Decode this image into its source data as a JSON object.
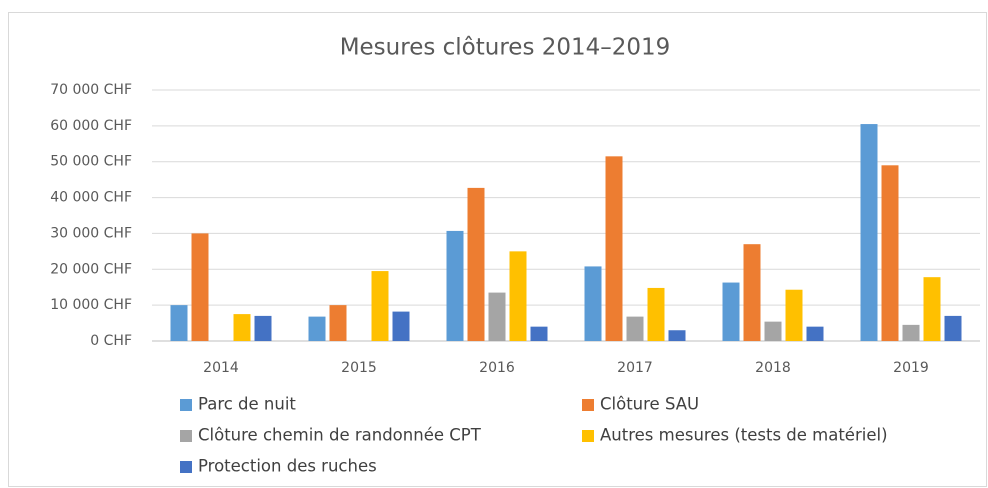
{
  "chart_data": {
    "type": "bar",
    "title": "Mesures clôtures 2014–2019",
    "categories": [
      "2014",
      "2015",
      "2016",
      "2017",
      "2018",
      "2019"
    ],
    "series": [
      {
        "name": "Parc de nuit",
        "color": "#5b9bd5",
        "values": [
          10000,
          6800,
          30700,
          20800,
          16300,
          60500
        ]
      },
      {
        "name": "Clôture SAU",
        "color": "#ed7d31",
        "values": [
          30000,
          10000,
          42700,
          51500,
          27000,
          49000
        ]
      },
      {
        "name": "Clôture chemin de randonnée CPT",
        "color": "#a5a5a5",
        "values": [
          0,
          0,
          13500,
          6800,
          5400,
          4500
        ]
      },
      {
        "name": "Autres mesures (tests de matériel)",
        "color": "#ffc000",
        "values": [
          7500,
          19500,
          25000,
          14800,
          14300,
          17800
        ]
      },
      {
        "name": "Protection des ruches",
        "color": "#4472c4",
        "values": [
          7000,
          8200,
          4000,
          3000,
          4000,
          7000
        ]
      }
    ],
    "ylim": [
      0,
      70000
    ],
    "yticks": [
      {
        "value": 0,
        "label": "0 CHF"
      },
      {
        "value": 10000,
        "label": "10 000 CHF"
      },
      {
        "value": 20000,
        "label": "20 000 CHF"
      },
      {
        "value": 30000,
        "label": "30 000 CHF"
      },
      {
        "value": 40000,
        "label": "40 000 CHF"
      },
      {
        "value": 50000,
        "label": "50 000 CHF"
      },
      {
        "value": 60000,
        "label": "60 000 CHF"
      },
      {
        "value": 70000,
        "label": "70 000 CHF"
      }
    ],
    "grid": true,
    "legend": "bottom"
  }
}
